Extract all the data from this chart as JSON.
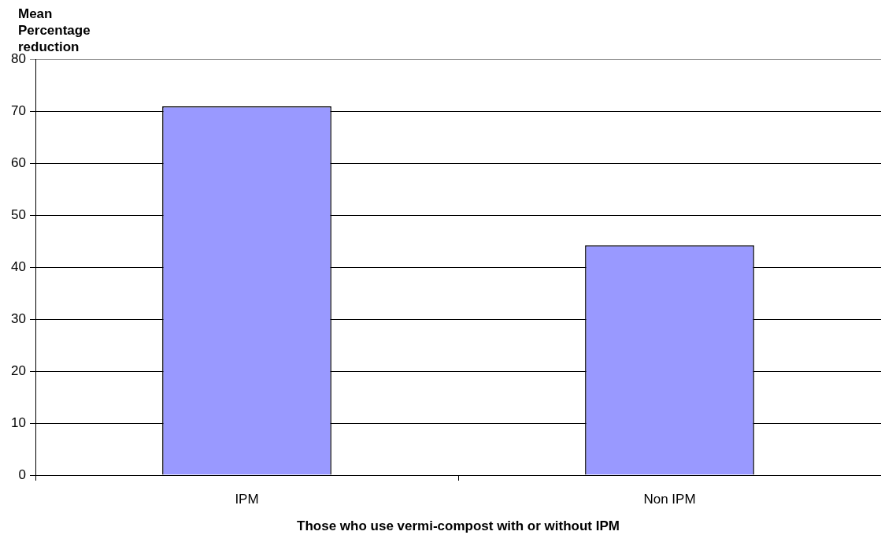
{
  "chart_data": {
    "type": "bar",
    "xlabel": "Those who use vermi-compost with or without IPM",
    "ylabel": "Mean Percentage reduction",
    "categories": [
      "IPM",
      "Non IPM"
    ],
    "values": [
      70.9,
      44.2
    ],
    "color": "#9999ff",
    "ylim": [
      0,
      80
    ],
    "yticks": [
      0,
      10,
      20,
      30,
      40,
      50,
      60,
      70,
      80
    ],
    "grid": "y"
  }
}
